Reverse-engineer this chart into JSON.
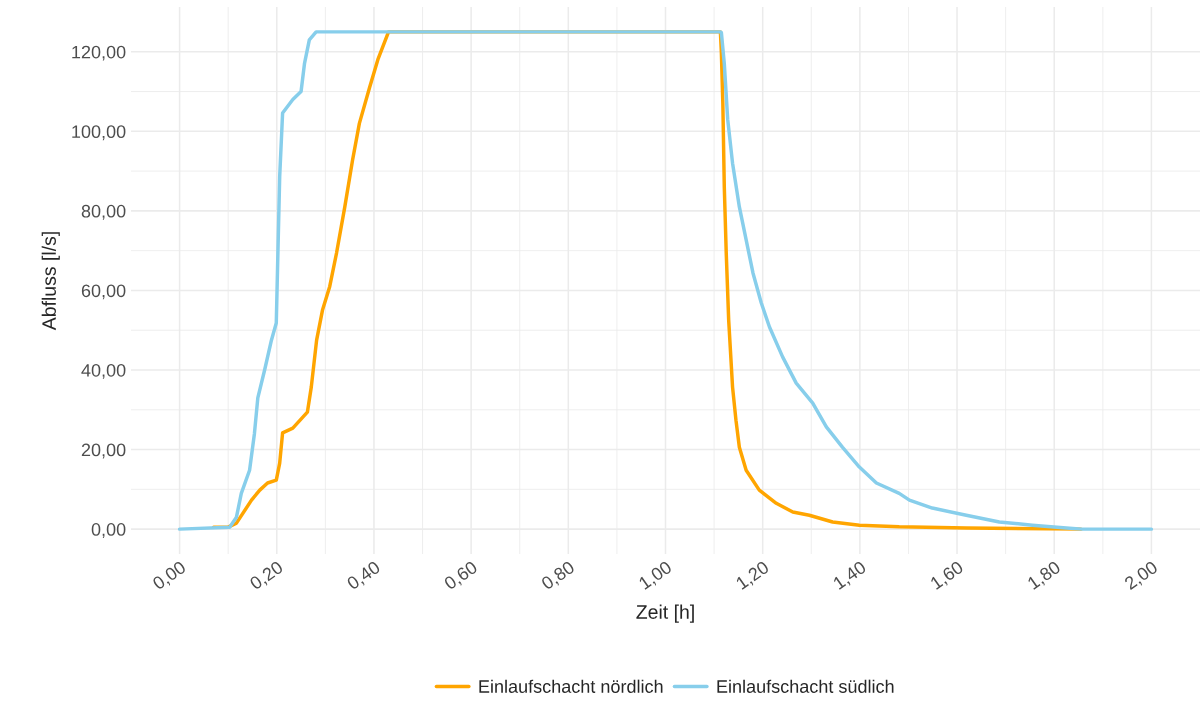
{
  "chart_data": {
    "type": "line",
    "xlabel": "Zeit [h]",
    "ylabel": "Abfluss [l/s]",
    "xlim": [
      -0.1,
      2.1
    ],
    "ylim": [
      -6.25,
      131.25
    ],
    "xticks": [
      {
        "value": 0,
        "label": "0,00"
      },
      {
        "value": 0.2,
        "label": "0,20"
      },
      {
        "value": 0.4,
        "label": "0,40"
      },
      {
        "value": 0.6,
        "label": "0,60"
      },
      {
        "value": 0.8,
        "label": "0,80"
      },
      {
        "value": 1.0,
        "label": "1,00"
      },
      {
        "value": 1.2,
        "label": "1,20"
      },
      {
        "value": 1.4,
        "label": "1,40"
      },
      {
        "value": 1.6,
        "label": "1,60"
      },
      {
        "value": 1.8,
        "label": "1,80"
      },
      {
        "value": 2.0,
        "label": "2,00"
      }
    ],
    "yticks": [
      {
        "value": 0,
        "label": "0,00"
      },
      {
        "value": 20,
        "label": "20,00"
      },
      {
        "value": 40,
        "label": "40,00"
      },
      {
        "value": 60,
        "label": "60,00"
      },
      {
        "value": 80,
        "label": "80,00"
      },
      {
        "value": 100,
        "label": "100,00"
      },
      {
        "value": 120,
        "label": "120,00"
      }
    ],
    "grid": true,
    "legend": "bottom",
    "line_style": "solid",
    "marker": "none",
    "series": [
      {
        "name": "Einlaufschacht nördlich",
        "color": "#ffa500",
        "x": [
          0.07,
          0.1,
          0.117,
          0.148,
          0.165,
          0.181,
          0.199,
          0.206,
          0.212,
          0.233,
          0.263,
          0.271,
          0.282,
          0.294,
          0.309,
          0.323,
          0.34,
          0.356,
          0.37,
          0.391,
          0.408,
          0.43,
          1.113,
          1.115,
          1.118,
          1.121,
          1.125,
          1.13,
          1.138,
          1.145,
          1.152,
          1.166,
          1.193,
          1.228,
          1.262,
          1.296,
          1.344,
          1.399,
          1.481,
          1.619,
          1.855
        ],
        "values": [
          0.5,
          0.5,
          1.5,
          7.3,
          9.8,
          11.6,
          12.3,
          16.6,
          24.2,
          25.4,
          29.4,
          35.7,
          47.5,
          55,
          61,
          69.4,
          81,
          92.8,
          102,
          111,
          118,
          125,
          125,
          119.7,
          107,
          86,
          69.4,
          52.6,
          35.7,
          27.4,
          20.6,
          14.8,
          9.8,
          6.5,
          4.3,
          3.5,
          1.8,
          1.0,
          0.6,
          0.3,
          0
        ]
      },
      {
        "name": "Einlaufschacht südlich",
        "color": "#87ceeb",
        "x": [
          0,
          0.103,
          0.117,
          0.127,
          0.144,
          0.154,
          0.161,
          0.175,
          0.189,
          0.199,
          0.202,
          0.206,
          0.212,
          0.233,
          0.25,
          0.257,
          0.267,
          0.281,
          1.113,
          1.115,
          1.121,
          1.128,
          1.138,
          1.152,
          1.166,
          1.18,
          1.197,
          1.214,
          1.241,
          1.269,
          1.303,
          1.331,
          1.364,
          1.399,
          1.434,
          1.481,
          1.502,
          1.549,
          1.619,
          1.687,
          1.755,
          1.825,
          1.858,
          2.0
        ],
        "values": [
          0,
          0.5,
          3,
          9,
          14.8,
          24,
          33,
          40,
          47.5,
          51.8,
          67.7,
          88.6,
          104.6,
          108,
          110,
          117,
          123,
          125,
          125,
          124.8,
          117,
          103,
          92,
          81,
          72.7,
          64.4,
          56.9,
          50.8,
          43.3,
          36.7,
          31.7,
          25.7,
          20.6,
          15.6,
          11.6,
          9,
          7.3,
          5.3,
          3.5,
          1.8,
          1.0,
          0.3,
          0,
          0
        ]
      }
    ]
  }
}
